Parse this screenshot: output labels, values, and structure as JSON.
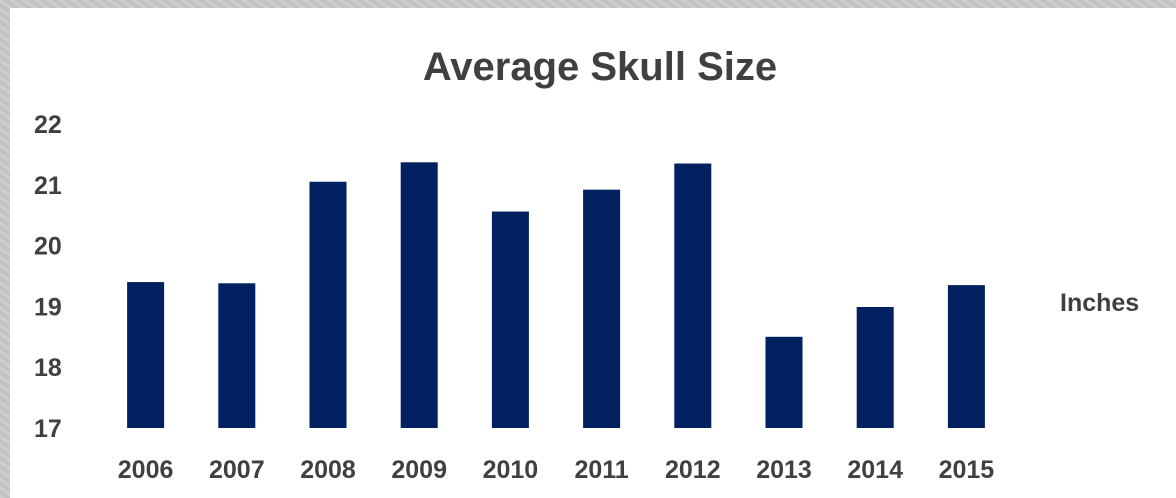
{
  "chart_data": {
    "type": "bar",
    "title": "Average Skull Size",
    "xlabel": "",
    "ylabel": "",
    "categories": [
      "2006",
      "2007",
      "2008",
      "2009",
      "2010",
      "2011",
      "2012",
      "2013",
      "2014",
      "2015"
    ],
    "series": [
      {
        "name": "Inches",
        "values": [
          19.4,
          19.38,
          21.05,
          21.37,
          20.56,
          20.92,
          21.35,
          18.5,
          18.99,
          19.35
        ],
        "color": "#002060"
      }
    ],
    "ylim": [
      17,
      22
    ],
    "yticks": [
      "17",
      "18",
      "19",
      "20",
      "21",
      "22"
    ],
    "grid": false,
    "legend": "right"
  }
}
